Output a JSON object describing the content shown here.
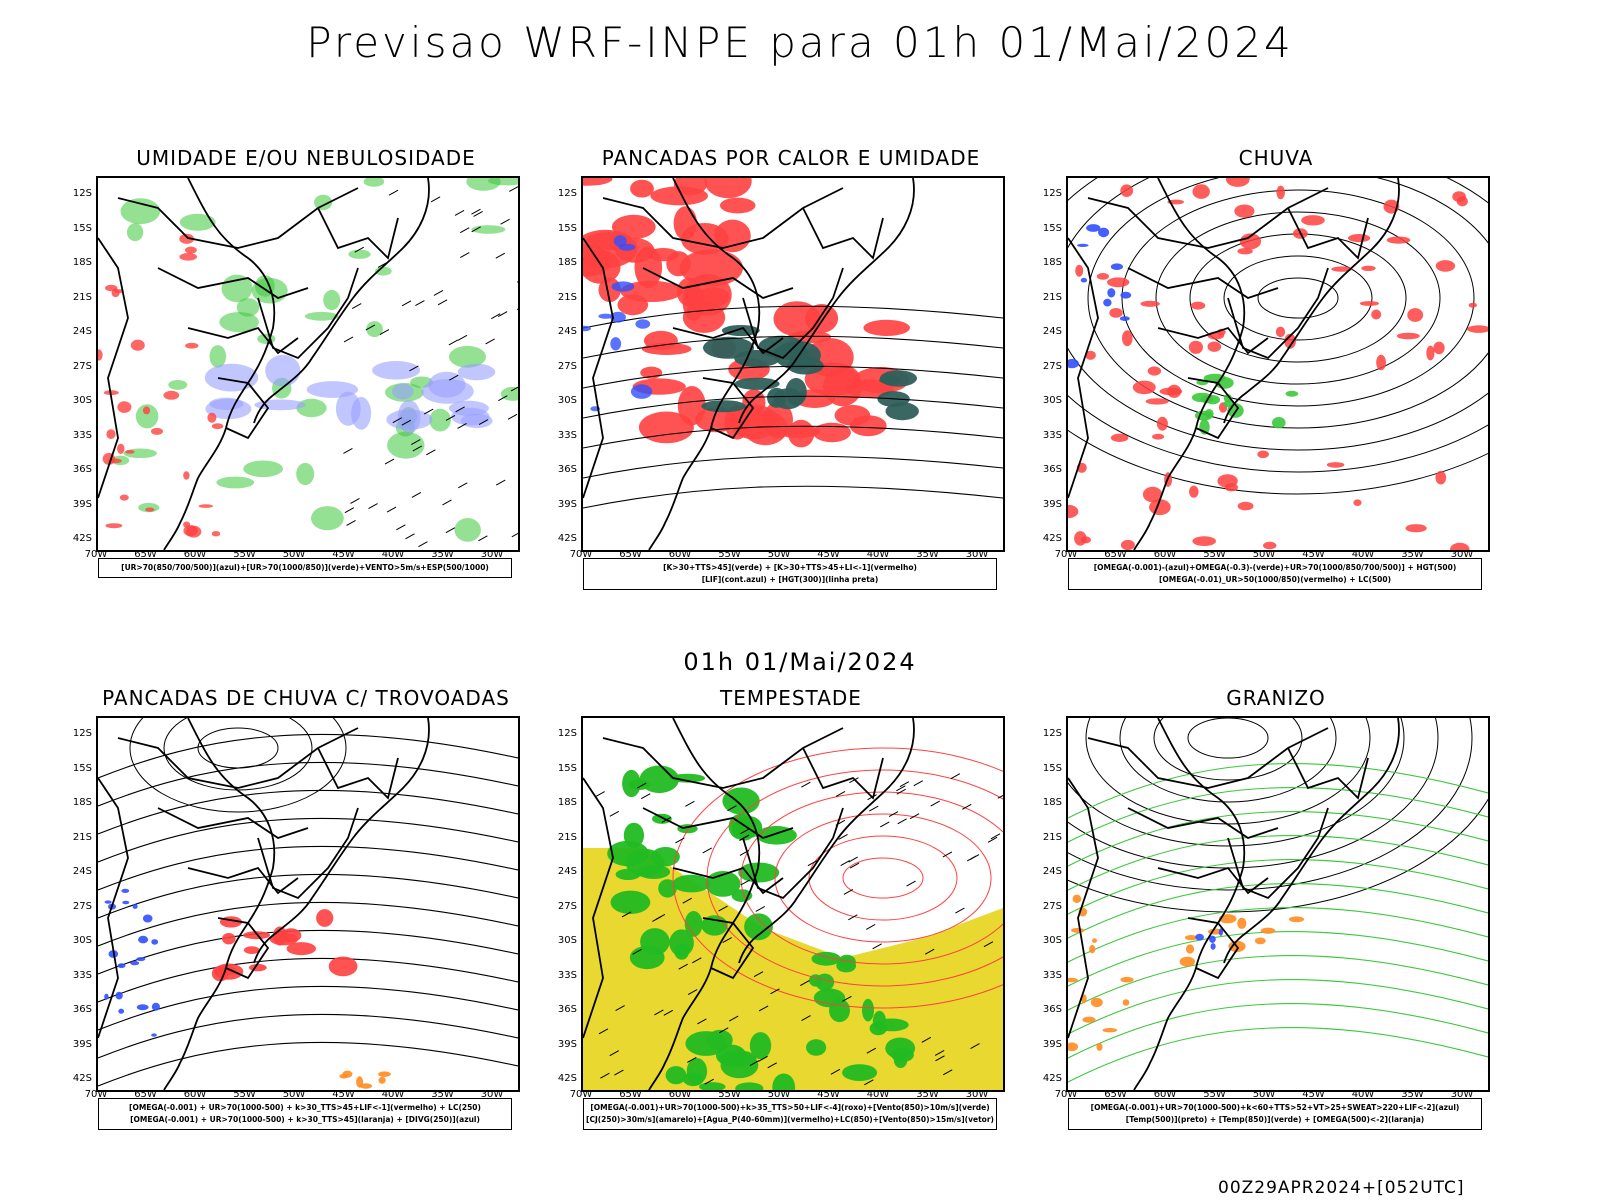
{
  "title": "Previsao WRF-INPE  para 01h 01/Mai/2024",
  "mid_title": "01h 01/Mai/2024",
  "footer": "00Z29APR2024+[052UTC]",
  "lat_labels": [
    "12S",
    "15S",
    "18S",
    "21S",
    "24S",
    "27S",
    "30S",
    "33S",
    "36S",
    "39S",
    "42S"
  ],
  "lon_labels": [
    "70W",
    "65W",
    "60W",
    "55W",
    "50W",
    "45W",
    "40W",
    "35W",
    "30W"
  ],
  "panels": [
    {
      "title": "UMIDADE E/OU NEBULOSIDADE",
      "legend": [
        "[UR>70(850/700/500)](azul)+[UR>70(1000/850)](verde)+VENTO>5m/s+ESP(500/1000)"
      ],
      "colors": [
        "#3cc83c",
        "#9aa0ff",
        "#ff4040"
      ]
    },
    {
      "title": "PANCADAS POR CALOR E UMIDADE",
      "legend": [
        "[K>30+TTS>45](verde) + [K>30+TTS>45+LI<-1](vermelho)",
        "[LIF](cont.azul) + [HGT(300)](linha preta)"
      ],
      "colors": [
        "#2f5f5a",
        "#ff4040",
        "#3050ff"
      ]
    },
    {
      "title": "CHUVA",
      "legend": [
        "[OMEGA(-0.001)-(azul)+OMEGA(-0.3)-(verde)+UR>70(1000/850/700/500)] + HGT(500)",
        "[OMEGA(-0.01)_UR>50(1000/850)(vermelho) + LC(500)"
      ],
      "colors": [
        "#ff4040",
        "#3cc83c",
        "#3050ff"
      ]
    },
    {
      "title": "PANCADAS DE CHUVA C/ TROVOADAS",
      "legend": [
        "[OMEGA(-0.001) + UR>70(1000-500) + k>30_TTS>45+LIF<-1](vermelho) + LC(250)",
        "[OMEGA(-0.001) + UR>70(1000-500) + k>30_TTS>45](laranja) + [DIVG(250)](azul)"
      ],
      "colors": [
        "#ff4040",
        "#3050ff",
        "#ff8c20"
      ]
    },
    {
      "title": "TEMPESTADE",
      "legend": [
        "[OMEGA(-0.001)+UR>70(1000-500)+k>35_TTS>50+LIF<-4](roxo)+[Vento(850)>10m/s](verde)",
        "[CJ(250)>30m/s](amarelo)+[Agua_P(40-60mm)](vermelho)+LC(850)+[Vento(850)>15m/s](vetor)"
      ],
      "colors": [
        "#22bb22",
        "#e8d830",
        "#ff4040"
      ]
    },
    {
      "title": "GRANIZO",
      "legend": [
        "[OMEGA(-0.001)+UR>70(1000-500)+k<60+TTS>52+VT>25+SWEAT>220+LIF<-2](azul)",
        "[Temp(500)](preto) + [Temp(850)](verde) + [OMEGA(500)<-2](laranja)"
      ],
      "colors": [
        "#3cc83c",
        "#ff8c20",
        "#3050ff"
      ]
    }
  ]
}
